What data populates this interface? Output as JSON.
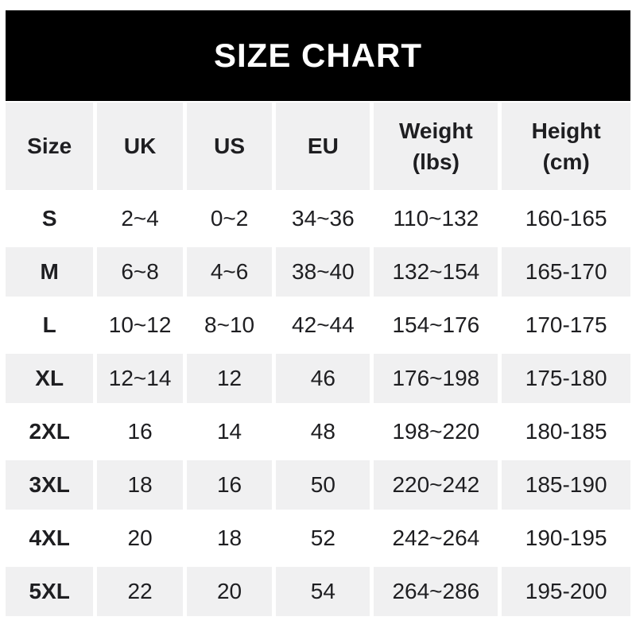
{
  "banner": {
    "title": "SIZE CHART"
  },
  "chart_data": {
    "type": "table",
    "title": "SIZE CHART",
    "columns": [
      "Size",
      "UK",
      "US",
      "EU",
      "Weight (lbs)",
      "Height (cm)"
    ],
    "header": [
      {
        "label": "Size",
        "sub": ""
      },
      {
        "label": "UK",
        "sub": ""
      },
      {
        "label": "US",
        "sub": ""
      },
      {
        "label": "EU",
        "sub": ""
      },
      {
        "label": "Weight",
        "sub": "(lbs)"
      },
      {
        "label": "Height",
        "sub": "(cm)"
      }
    ],
    "rows": [
      [
        "S",
        "2~4",
        "0~2",
        "34~36",
        "110~132",
        "160-165"
      ],
      [
        "M",
        "6~8",
        "4~6",
        "38~40",
        "132~154",
        "165-170"
      ],
      [
        "L",
        "10~12",
        "8~10",
        "42~44",
        "154~176",
        "170-175"
      ],
      [
        "XL",
        "12~14",
        "12",
        "46",
        "176~198",
        "175-180"
      ],
      [
        "2XL",
        "16",
        "14",
        "48",
        "198~220",
        "180-185"
      ],
      [
        "3XL",
        "18",
        "16",
        "50",
        "220~242",
        "185-190"
      ],
      [
        "4XL",
        "20",
        "18",
        "52",
        "242~264",
        "190-195"
      ],
      [
        "5XL",
        "22",
        "20",
        "54",
        "264~286",
        "195-200"
      ]
    ]
  },
  "colors": {
    "banner_bg": "#000000",
    "banner_text": "#ffffff",
    "cell_gray": "#f0f0f1",
    "row_white": "#ffffff",
    "text": "#1e1e21"
  }
}
